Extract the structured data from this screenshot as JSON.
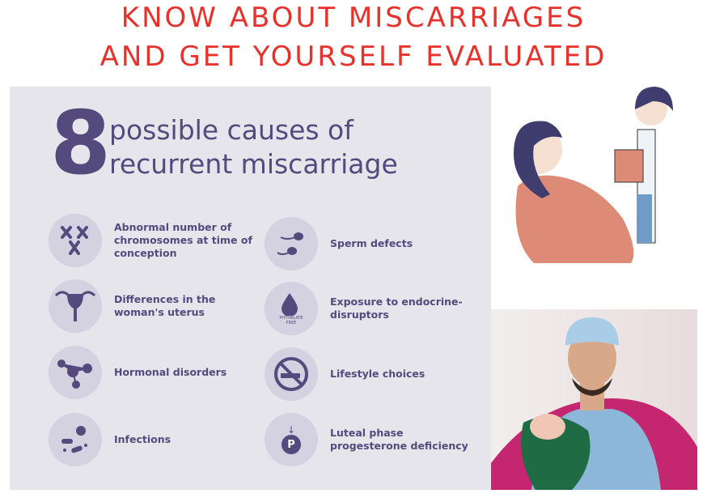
{
  "title": {
    "line1": "KNOW ABOUT MISCARRIAGES",
    "line2": "AND GET YOURSELF EVALUATED"
  },
  "infographic": {
    "number": "8",
    "heading_line1": "possible causes of",
    "heading_line2": "recurrent miscarriage",
    "causes": [
      {
        "label": "Abnormal number of chromosomes at time of conception",
        "icon": "chromosomes-icon"
      },
      {
        "label": "Differences in the woman's uterus",
        "icon": "uterus-icon"
      },
      {
        "label": "Hormonal disorders",
        "icon": "molecule-icon"
      },
      {
        "label": "Infections",
        "icon": "bacteria-icon"
      },
      {
        "label": "Sperm defects",
        "icon": "sperm-icon"
      },
      {
        "label": "Exposure to endocrine-disruptors",
        "icon": "phthalate-drop-icon",
        "icon_text": "PHTHALATE FREE"
      },
      {
        "label": "Lifestyle choices",
        "icon": "no-smoking-icon"
      },
      {
        "label": "Luteal phase progesterone deficiency",
        "icon": "progesterone-icon",
        "icon_text": "P"
      }
    ]
  },
  "colors": {
    "title": "#e8312b",
    "panel": "#e6e5eb",
    "accent": "#544a7e",
    "circle": "#d4d1e1"
  }
}
